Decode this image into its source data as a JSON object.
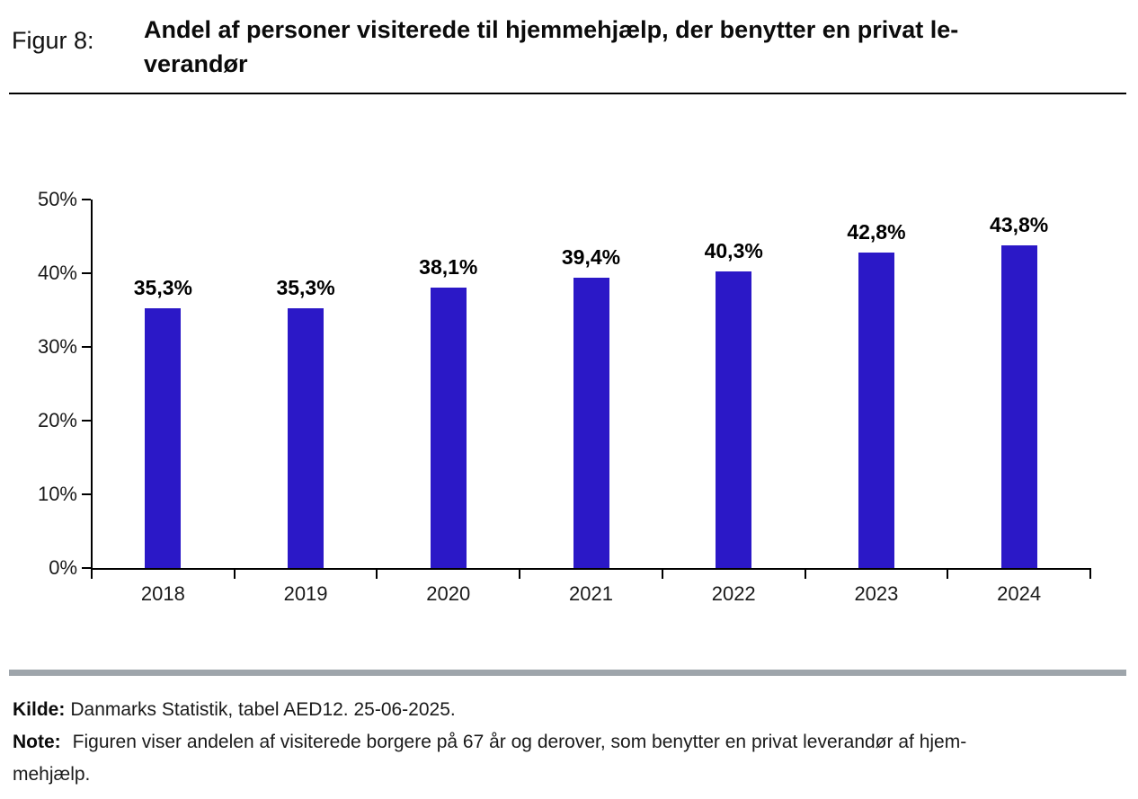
{
  "header": {
    "figure_label": "Figur 8:",
    "title_line1": "Andel af personer visiterede til hjemmehjælp, der benytter en privat le-",
    "title_line2": "verandør"
  },
  "chart_data": {
    "type": "bar",
    "title": "Andel af personer visiterede til hjemmehjælp, der benytter en privat leverandør",
    "categories": [
      "2018",
      "2019",
      "2020",
      "2021",
      "2022",
      "2023",
      "2024"
    ],
    "values": [
      35.3,
      35.3,
      38.1,
      39.4,
      40.3,
      42.8,
      43.8
    ],
    "value_labels": [
      "35,3%",
      "35,3%",
      "38,1%",
      "39,4%",
      "40,3%",
      "42,8%",
      "43,8%"
    ],
    "xlabel": "",
    "ylabel": "",
    "ylim": [
      0,
      50
    ],
    "y_tick_labels": [
      "0%",
      "10%",
      "20%",
      "30%",
      "40%",
      "50%"
    ],
    "grid": false,
    "legend_position": "none",
    "bar_color": "#2B18C7"
  },
  "footer": {
    "source_label": "Kilde:",
    "source_text": "Danmarks Statistik, tabel AED12. 25-06-2025.",
    "note_label": "Note:",
    "note_line1": "Figuren viser andelen af visiterede borgere på 67 år og derover, som benytter en privat leverandør af hjem-",
    "note_line2": "mehjælp."
  },
  "colors": {
    "bar": "#2B18C7",
    "separator": "#9ea5ab",
    "axis": "#000000",
    "text": "#1a1a1a"
  }
}
